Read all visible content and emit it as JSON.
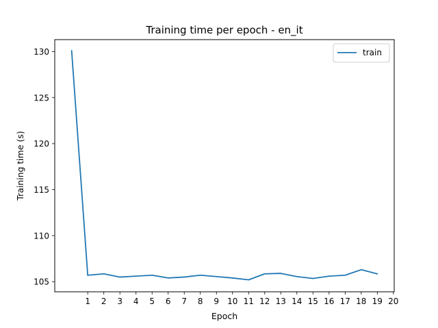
{
  "chart_data": {
    "type": "line",
    "title": "Training time per epoch - en_it",
    "xlabel": "Epoch",
    "ylabel": "Training time (s)",
    "x": [
      0,
      1,
      2,
      3,
      4,
      5,
      6,
      7,
      8,
      9,
      10,
      11,
      12,
      13,
      14,
      15,
      16,
      17,
      18,
      19
    ],
    "series": [
      {
        "name": "train",
        "color": "#1f77b4",
        "values": [
          130.1,
          105.7,
          105.85,
          105.5,
          105.6,
          105.7,
          105.4,
          105.5,
          105.7,
          105.55,
          105.4,
          105.2,
          105.85,
          105.9,
          105.55,
          105.35,
          105.6,
          105.7,
          106.3,
          105.85
        ]
      }
    ],
    "xticks": [
      1,
      2,
      3,
      4,
      5,
      6,
      7,
      8,
      9,
      10,
      11,
      12,
      13,
      14,
      15,
      16,
      17,
      18,
      19,
      20
    ],
    "yticks": [
      105,
      110,
      115,
      120,
      125,
      130
    ],
    "xlim": [
      -1.05,
      20.05
    ],
    "ylim": [
      103.9,
      131.3
    ],
    "legend": "top-right",
    "grid": false
  }
}
